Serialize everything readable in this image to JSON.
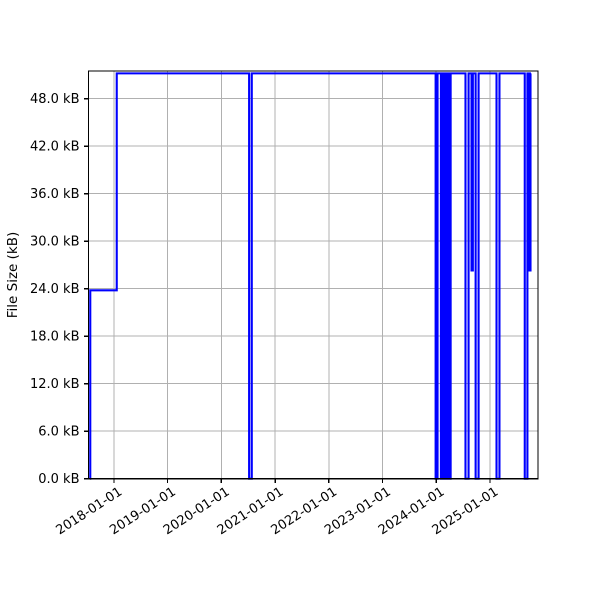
{
  "chart_data": {
    "type": "line",
    "style": "step-post",
    "title": "",
    "xlabel": "",
    "ylabel": "File Size (kB)",
    "legend": null,
    "grid": true,
    "line_color": "#0000FF",
    "grid_color": "#B0B0B0",
    "axis_color": "#000000",
    "background_color": "#FFFFFF",
    "xlim": [
      "2017-07-12",
      "2025-11-23"
    ],
    "ylim": [
      0,
      51.5
    ],
    "x_tick_labels": [
      "2018-01-01",
      "2019-01-01",
      "2020-01-01",
      "2021-01-01",
      "2022-01-01",
      "2023-01-01",
      "2024-01-01",
      "2025-01-01"
    ],
    "y_tick_values": [
      0,
      6,
      12,
      18,
      24,
      30,
      36,
      42,
      48
    ],
    "y_tick_labels": [
      "0.0 kB",
      "6.0 kB",
      "12.0 kB",
      "18.0 kB",
      "24.0 kB",
      "30.0 kB",
      "36.0 kB",
      "42.0 kB",
      "48.0 kB"
    ],
    "points": [
      [
        "2017-07-21",
        0.0
      ],
      [
        "2017-07-24",
        23.8
      ],
      [
        "2018-01-20",
        51.2
      ],
      [
        "2020-07-08",
        0.0
      ],
      [
        "2020-07-26",
        51.2
      ],
      [
        "2023-12-28",
        0.0
      ],
      [
        "2024-01-10",
        51.2
      ],
      [
        "2024-02-02",
        0.0
      ],
      [
        "2024-02-12",
        51.2
      ],
      [
        "2024-02-22",
        0.0
      ],
      [
        "2024-03-03",
        51.2
      ],
      [
        "2024-03-13",
        0.0
      ],
      [
        "2024-03-23",
        51.2
      ],
      [
        "2024-04-01",
        0.0
      ],
      [
        "2024-04-08",
        51.2
      ],
      [
        "2024-07-18",
        0.0
      ],
      [
        "2024-08-08",
        51.2
      ],
      [
        "2024-08-28",
        26.3
      ],
      [
        "2024-09-06",
        51.2
      ],
      [
        "2024-09-25",
        0.0
      ],
      [
        "2024-10-15",
        51.2
      ],
      [
        "2025-02-14",
        0.0
      ],
      [
        "2025-03-06",
        51.2
      ],
      [
        "2025-08-25",
        0.0
      ],
      [
        "2025-09-12",
        51.2
      ],
      [
        "2025-09-26",
        26.3
      ],
      [
        "2025-10-03",
        51.2
      ]
    ],
    "end_date": "2025-10-06"
  }
}
